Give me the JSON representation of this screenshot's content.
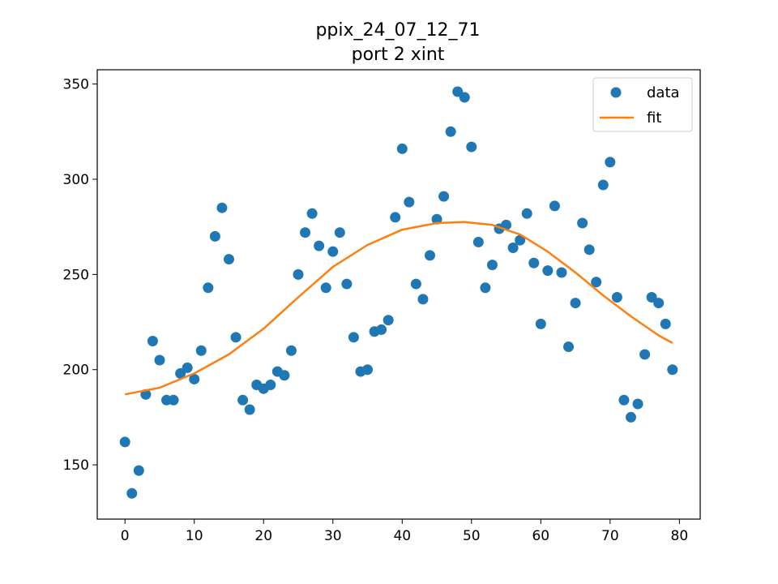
{
  "chart_data": {
    "type": "scatter",
    "title": "ppix_24_07_12_71",
    "subtitle": "port 2 xint",
    "xlabel": "",
    "ylabel": "",
    "xlim": [
      -4,
      83
    ],
    "ylim": [
      121.5,
      357.5
    ],
    "xticks": [
      0,
      10,
      20,
      30,
      40,
      50,
      60,
      70,
      80
    ],
    "yticks": [
      150,
      200,
      250,
      300,
      350
    ],
    "grid": false,
    "legend": {
      "position": "top-right",
      "entries": [
        "data",
        "fit"
      ]
    },
    "colors": {
      "data": "#1f77b4",
      "fit": "#ff7f0e"
    },
    "series": [
      {
        "name": "data",
        "kind": "scatter",
        "x": [
          0,
          1,
          2,
          3,
          4,
          5,
          6,
          7,
          8,
          9,
          10,
          11,
          12,
          13,
          14,
          15,
          16,
          17,
          18,
          19,
          20,
          21,
          22,
          23,
          24,
          25,
          26,
          27,
          28,
          29,
          30,
          31,
          32,
          33,
          34,
          35,
          36,
          37,
          38,
          39,
          40,
          41,
          42,
          43,
          44,
          45,
          46,
          47,
          48,
          49,
          50,
          51,
          52,
          53,
          54,
          55,
          56,
          57,
          58,
          59,
          60,
          61,
          62,
          63,
          64,
          65,
          66,
          67,
          68,
          69,
          70,
          71,
          72,
          73,
          74,
          75,
          76,
          77,
          78,
          79
        ],
        "y": [
          162,
          135,
          147,
          187,
          215,
          205,
          184,
          184,
          198,
          201,
          195,
          210,
          243,
          270,
          285,
          258,
          217,
          184,
          179,
          192,
          190,
          192,
          199,
          197,
          210,
          250,
          272,
          282,
          265,
          243,
          262,
          272,
          245,
          217,
          199,
          200,
          220,
          221,
          226,
          280,
          316,
          288,
          245,
          237,
          260,
          279,
          291,
          325,
          346,
          343,
          317,
          267,
          243,
          255,
          274,
          276,
          264,
          268,
          282,
          256,
          224,
          252,
          286,
          251,
          212,
          235,
          277,
          263,
          246,
          297,
          309,
          238,
          184,
          175,
          182,
          208,
          238,
          235,
          224,
          200
        ]
      },
      {
        "name": "fit",
        "kind": "line",
        "x": [
          0,
          5,
          10,
          15,
          20,
          25,
          30,
          35,
          40,
          45,
          49,
          53,
          57,
          61,
          65,
          69,
          73,
          77,
          79
        ],
        "y": [
          187,
          190.5,
          198,
          208,
          221.5,
          238,
          254,
          265.5,
          273.5,
          277,
          277.5,
          276,
          271,
          262,
          251,
          239,
          228,
          218,
          214
        ]
      }
    ]
  }
}
